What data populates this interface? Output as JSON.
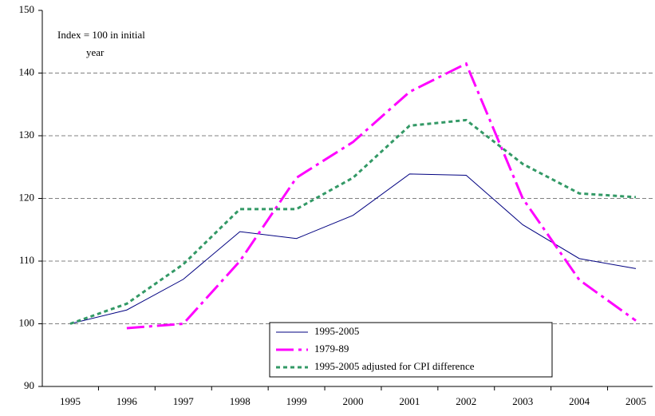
{
  "chart_data": {
    "type": "line",
    "annotation": [
      "Index = 100 in initial",
      "year"
    ],
    "categories": [
      "1995",
      "1996",
      "1997",
      "1998",
      "1999",
      "2000",
      "2001",
      "2002",
      "2003",
      "2004",
      "2005"
    ],
    "series": [
      {
        "name": "1995-2005",
        "color": "#000080",
        "dash": "solid",
        "width": 1,
        "values": [
          100,
          102.2,
          107.1,
          114.7,
          113.6,
          117.3,
          123.9,
          123.7,
          115.8,
          110.4,
          108.8
        ]
      },
      {
        "name": "1979-89",
        "color": "#ff00ff",
        "dash": "dashdot",
        "width": 3,
        "values": [
          null,
          99.3,
          100,
          110,
          123.3,
          129,
          137,
          141.5,
          120,
          107,
          100.5
        ]
      },
      {
        "name": "1995-2005 adjusted for CPI difference",
        "color": "#339966",
        "dash": "dot",
        "width": 3,
        "values": [
          100,
          103.2,
          109.5,
          118.3,
          118.3,
          123.3,
          131.6,
          132.5,
          125.5,
          120.8,
          120.2
        ]
      }
    ],
    "ylim": [
      90,
      150
    ],
    "yticks": [
      90,
      100,
      110,
      120,
      130,
      140,
      150
    ],
    "grid": true
  }
}
